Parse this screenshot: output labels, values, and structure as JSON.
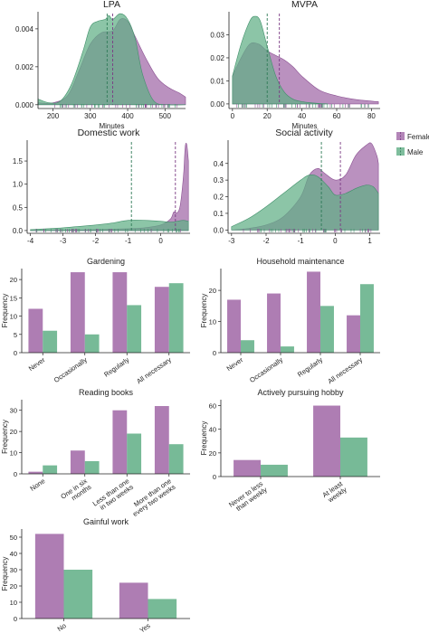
{
  "colors": {
    "female": "#a066a6",
    "male": "#5fae85",
    "female_dark": "#8a4f91",
    "male_dark": "#3f8f69"
  },
  "legend": {
    "female": "Female",
    "male": "Male"
  },
  "chart_data": [
    {
      "id": "lpa",
      "type": "area",
      "title": "LPA",
      "xlabel": "Minutes",
      "ylabel": "",
      "xlim": [
        160,
        555
      ],
      "ylim": [
        -0.0002,
        0.0049
      ],
      "xticks": [
        200,
        300,
        400,
        500
      ],
      "yticks": [
        0.0,
        0.002,
        0.004
      ],
      "ytick_labels": [
        "0.000",
        "0.002",
        "0.004"
      ],
      "series": [
        {
          "name": "Female",
          "mean": 360,
          "x": [
            160,
            200,
            240,
            270,
            300,
            330,
            360,
            380,
            400,
            420,
            450,
            480,
            510,
            540,
            555
          ],
          "y": [
            0.0001,
            0.0001,
            0.0005,
            0.0018,
            0.0032,
            0.0038,
            0.0039,
            0.0045,
            0.0044,
            0.0036,
            0.0024,
            0.0014,
            0.0009,
            0.0006,
            0.0004
          ]
        },
        {
          "name": "Male",
          "mean": 345,
          "x": [
            160,
            190,
            220,
            250,
            280,
            300,
            320,
            340,
            350,
            360,
            380,
            400,
            420,
            440,
            470,
            510,
            555
          ],
          "y": [
            0.0003,
            0.0001,
            0.0002,
            0.0011,
            0.0028,
            0.0041,
            0.0044,
            0.0045,
            0.0047,
            0.0045,
            0.0048,
            0.0045,
            0.0035,
            0.0016,
            0.0002,
            0.0,
            0.0
          ]
        }
      ]
    },
    {
      "id": "mvpa",
      "type": "area",
      "title": "MVPA",
      "xlabel": "Minutes",
      "ylabel": "",
      "xlim": [
        -2,
        85
      ],
      "ylim": [
        -0.002,
        0.04
      ],
      "xticks": [
        0,
        20,
        40,
        60,
        80
      ],
      "yticks": [
        0.0,
        0.01,
        0.02,
        0.03
      ],
      "ytick_labels": [
        "0.00",
        "0.01",
        "0.02",
        "0.03"
      ],
      "series": [
        {
          "name": "Female",
          "mean": 27,
          "x": [
            0,
            5,
            10,
            15,
            20,
            25,
            30,
            35,
            40,
            50,
            60,
            70,
            80,
            84
          ],
          "y": [
            0.012,
            0.02,
            0.026,
            0.026,
            0.023,
            0.021,
            0.019,
            0.016,
            0.012,
            0.006,
            0.0035,
            0.002,
            0.0012,
            0.001
          ]
        },
        {
          "name": "Male",
          "mean": 20,
          "x": [
            0,
            5,
            10,
            13,
            16,
            20,
            25,
            30,
            35,
            40,
            45,
            50,
            55
          ],
          "y": [
            0.012,
            0.026,
            0.036,
            0.038,
            0.036,
            0.025,
            0.012,
            0.005,
            0.002,
            0.001,
            0.0005,
            0.0002,
            0.0
          ]
        }
      ]
    },
    {
      "id": "domestic",
      "type": "area",
      "title": "Domestic work",
      "xlabel": "",
      "ylabel": "",
      "xlim": [
        -4.1,
        0.9
      ],
      "ylim": [
        -0.06,
        1.95
      ],
      "xticks": [
        -4,
        -3,
        -2,
        -1,
        0
      ],
      "yticks": [
        0.0,
        0.5,
        1.0,
        1.5
      ],
      "ytick_labels": [
        "0.0",
        "0.5",
        "1.0",
        "1.5"
      ],
      "series": [
        {
          "name": "Female",
          "mean": 0.45,
          "x": [
            -4.0,
            -3.0,
            -2.0,
            -1.0,
            -0.5,
            0.0,
            0.3,
            0.4,
            0.5,
            0.6,
            0.7,
            0.75,
            0.8,
            0.85
          ],
          "y": [
            0.0,
            0.01,
            0.02,
            0.04,
            0.06,
            0.12,
            0.25,
            0.4,
            0.38,
            0.55,
            1.2,
            1.8,
            1.85,
            1.5
          ]
        },
        {
          "name": "Male",
          "mean": -0.9,
          "x": [
            -4.0,
            -3.0,
            -2.0,
            -1.5,
            -1.0,
            -0.5,
            0.0,
            0.3,
            0.5,
            0.7,
            0.85
          ],
          "y": [
            0.02,
            0.06,
            0.12,
            0.16,
            0.22,
            0.22,
            0.2,
            0.18,
            0.2,
            0.22,
            0.2
          ]
        }
      ]
    },
    {
      "id": "social",
      "type": "area",
      "title": "Social activity",
      "xlabel": "",
      "ylabel": "",
      "xlim": [
        -3.1,
        1.3
      ],
      "ylim": [
        -0.02,
        0.54
      ],
      "xticks": [
        -3,
        -2,
        -1,
        0,
        1
      ],
      "yticks": [
        0.0,
        0.1,
        0.2,
        0.3,
        0.4
      ],
      "ytick_labels": [
        "0.0",
        "0.1",
        "0.2",
        "0.3",
        "0.4"
      ],
      "series": [
        {
          "name": "Female",
          "mean": 0.15,
          "x": [
            -3.0,
            -2.5,
            -2.0,
            -1.5,
            -1.0,
            -0.75,
            -0.5,
            -0.3,
            0.0,
            0.3,
            0.6,
            0.9,
            1.05,
            1.2,
            1.25
          ],
          "y": [
            0.0,
            0.01,
            0.03,
            0.08,
            0.2,
            0.33,
            0.37,
            0.34,
            0.3,
            0.33,
            0.45,
            0.51,
            0.52,
            0.45,
            0.4
          ]
        },
        {
          "name": "Male",
          "mean": -0.4,
          "x": [
            -3.0,
            -2.5,
            -2.0,
            -1.5,
            -1.0,
            -0.75,
            -0.5,
            -0.2,
            0.0,
            0.3,
            0.6,
            0.9,
            1.1,
            1.25
          ],
          "y": [
            0.02,
            0.07,
            0.14,
            0.22,
            0.3,
            0.33,
            0.32,
            0.26,
            0.21,
            0.22,
            0.25,
            0.27,
            0.26,
            0.22
          ]
        }
      ]
    },
    {
      "id": "gardening",
      "type": "bar",
      "title": "Gardening",
      "ylabel": "Frequency",
      "categories": [
        "Never",
        "Occasionally",
        "Regularly",
        "All necessary"
      ],
      "ylim": [
        0,
        23
      ],
      "yticks": [
        0,
        5,
        10,
        15,
        20
      ],
      "series": [
        {
          "name": "Female",
          "values": [
            12,
            22,
            22,
            18
          ]
        },
        {
          "name": "Male",
          "values": [
            6,
            5,
            13,
            19
          ]
        }
      ]
    },
    {
      "id": "household",
      "type": "bar",
      "title": "Household maintenance",
      "ylabel": "Frequency",
      "categories": [
        "Never",
        "Occasionally",
        "Regularly",
        "All necessary"
      ],
      "ylim": [
        0,
        27
      ],
      "yticks": [
        0,
        10,
        20
      ],
      "series": [
        {
          "name": "Female",
          "values": [
            17,
            19,
            26,
            12
          ]
        },
        {
          "name": "Male",
          "values": [
            4,
            2,
            15,
            22
          ]
        }
      ]
    },
    {
      "id": "reading",
      "type": "bar",
      "title": "Reading books",
      "ylabel": "Frequency",
      "categories": [
        "None",
        "One in six months",
        "Less than one in two weeks",
        "More than one every two weeks"
      ],
      "category_lines": [
        [
          "None"
        ],
        [
          "One in six",
          "months"
        ],
        [
          "Less than one",
          "in two weeks"
        ],
        [
          "More than one",
          "every two weeks"
        ]
      ],
      "ylim": [
        0,
        35
      ],
      "yticks": [
        0,
        10,
        20,
        30
      ],
      "series": [
        {
          "name": "Female",
          "values": [
            1,
            11,
            30,
            32
          ]
        },
        {
          "name": "Male",
          "values": [
            4,
            6,
            19,
            14
          ]
        }
      ]
    },
    {
      "id": "hobby",
      "type": "bar",
      "title": "Actively pursuing hobby",
      "ylabel": "Frequency",
      "categories": [
        "Never to less than weekly",
        "At least weekly"
      ],
      "category_lines": [
        [
          "Never to less",
          "than weekly"
        ],
        [
          "At least",
          "weekly"
        ]
      ],
      "ylim": [
        0,
        65
      ],
      "yticks": [
        0,
        20,
        40,
        60
      ],
      "series": [
        {
          "name": "Female",
          "values": [
            14,
            60
          ]
        },
        {
          "name": "Male",
          "values": [
            10,
            33
          ]
        }
      ]
    },
    {
      "id": "gainful",
      "type": "bar",
      "title": "Gainful work",
      "ylabel": "Frequency",
      "categories": [
        "No",
        "Yes"
      ],
      "ylim": [
        0,
        55
      ],
      "yticks": [
        0,
        10,
        20,
        30,
        40,
        50
      ],
      "series": [
        {
          "name": "Female",
          "values": [
            52,
            22
          ]
        },
        {
          "name": "Male",
          "values": [
            30,
            12
          ]
        }
      ]
    }
  ]
}
